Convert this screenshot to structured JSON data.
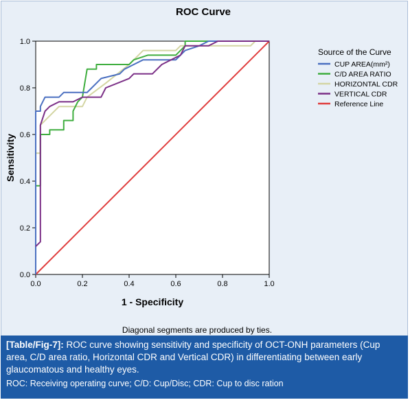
{
  "chart_data": {
    "type": "line",
    "title": "ROC Curve",
    "xlabel": "1 - Specificity",
    "ylabel": "Sensitivity",
    "xlim": [
      0.0,
      1.0
    ],
    "ylim": [
      0.0,
      1.0
    ],
    "xticks": [
      "0.0",
      "0.2",
      "0.4",
      "0.6",
      "0.8",
      "1.0"
    ],
    "yticks": [
      "0.0",
      "0.2",
      "0.4",
      "0.6",
      "0.8",
      "1.0"
    ],
    "grid": false,
    "legend_title": "Source of the Curve",
    "legend_position": "right",
    "note": "Diagonal segments are produced by ties.",
    "series": [
      {
        "name": "CUP AREA(mm²)",
        "color": "#4a6fc0",
        "points": [
          [
            0.0,
            0.0
          ],
          [
            0.0,
            0.7
          ],
          [
            0.02,
            0.7
          ],
          [
            0.02,
            0.72
          ],
          [
            0.04,
            0.76
          ],
          [
            0.1,
            0.76
          ],
          [
            0.12,
            0.78
          ],
          [
            0.22,
            0.78
          ],
          [
            0.24,
            0.8
          ],
          [
            0.28,
            0.84
          ],
          [
            0.36,
            0.86
          ],
          [
            0.38,
            0.88
          ],
          [
            0.42,
            0.9
          ],
          [
            0.46,
            0.92
          ],
          [
            0.6,
            0.92
          ],
          [
            0.62,
            0.94
          ],
          [
            0.64,
            0.96
          ],
          [
            0.7,
            0.98
          ],
          [
            0.74,
            1.0
          ],
          [
            1.0,
            1.0
          ]
        ]
      },
      {
        "name": "C/D AREA RATIO",
        "color": "#3fae3f",
        "points": [
          [
            0.0,
            0.0
          ],
          [
            0.0,
            0.38
          ],
          [
            0.02,
            0.38
          ],
          [
            0.02,
            0.6
          ],
          [
            0.06,
            0.6
          ],
          [
            0.06,
            0.62
          ],
          [
            0.12,
            0.62
          ],
          [
            0.12,
            0.66
          ],
          [
            0.16,
            0.66
          ],
          [
            0.16,
            0.7
          ],
          [
            0.18,
            0.74
          ],
          [
            0.2,
            0.76
          ],
          [
            0.22,
            0.88
          ],
          [
            0.26,
            0.88
          ],
          [
            0.26,
            0.9
          ],
          [
            0.4,
            0.9
          ],
          [
            0.42,
            0.92
          ],
          [
            0.48,
            0.94
          ],
          [
            0.6,
            0.94
          ],
          [
            0.62,
            0.96
          ],
          [
            0.64,
            0.98
          ],
          [
            0.64,
            1.0
          ],
          [
            1.0,
            1.0
          ]
        ]
      },
      {
        "name": "HORIZONTAL CDR",
        "color": "#d3d5a2",
        "points": [
          [
            0.0,
            0.0
          ],
          [
            0.0,
            0.52
          ],
          [
            0.02,
            0.52
          ],
          [
            0.02,
            0.64
          ],
          [
            0.04,
            0.66
          ],
          [
            0.06,
            0.68
          ],
          [
            0.1,
            0.72
          ],
          [
            0.2,
            0.72
          ],
          [
            0.22,
            0.76
          ],
          [
            0.3,
            0.82
          ],
          [
            0.4,
            0.9
          ],
          [
            0.44,
            0.94
          ],
          [
            0.46,
            0.96
          ],
          [
            0.6,
            0.96
          ],
          [
            0.62,
            0.98
          ],
          [
            0.92,
            0.98
          ],
          [
            0.94,
            1.0
          ],
          [
            1.0,
            1.0
          ]
        ]
      },
      {
        "name": "VERTICAL CDR",
        "color": "#7b2f86",
        "points": [
          [
            0.0,
            0.12
          ],
          [
            0.02,
            0.14
          ],
          [
            0.02,
            0.18
          ],
          [
            0.02,
            0.64
          ],
          [
            0.04,
            0.7
          ],
          [
            0.06,
            0.72
          ],
          [
            0.1,
            0.74
          ],
          [
            0.16,
            0.74
          ],
          [
            0.2,
            0.76
          ],
          [
            0.28,
            0.76
          ],
          [
            0.3,
            0.8
          ],
          [
            0.4,
            0.84
          ],
          [
            0.42,
            0.86
          ],
          [
            0.5,
            0.86
          ],
          [
            0.54,
            0.9
          ],
          [
            0.62,
            0.94
          ],
          [
            0.64,
            0.98
          ],
          [
            0.74,
            0.98
          ],
          [
            0.78,
            1.0
          ],
          [
            1.0,
            1.0
          ]
        ]
      },
      {
        "name": "Reference Line",
        "color": "#e03c3c",
        "points": [
          [
            0.0,
            0.0
          ],
          [
            1.0,
            1.0
          ]
        ]
      }
    ]
  },
  "caption": {
    "label": "[Table/Fig-7]:",
    "text": " ROC curve showing sensitivity and specificity of OCT-ONH parameters (Cup area, C/D area ratio, Horizontal CDR and Vertical CDR) in differentiating between early glaucomatous and healthy eyes.",
    "abbreviations": "ROC: Receiving operating curve; C/D: Cup/Disc; CDR: Cup to disc ration"
  },
  "colors": {
    "frame_background": "#e8eff7",
    "plot_background": "#ffffff",
    "caption_background": "#1e5ba6"
  }
}
